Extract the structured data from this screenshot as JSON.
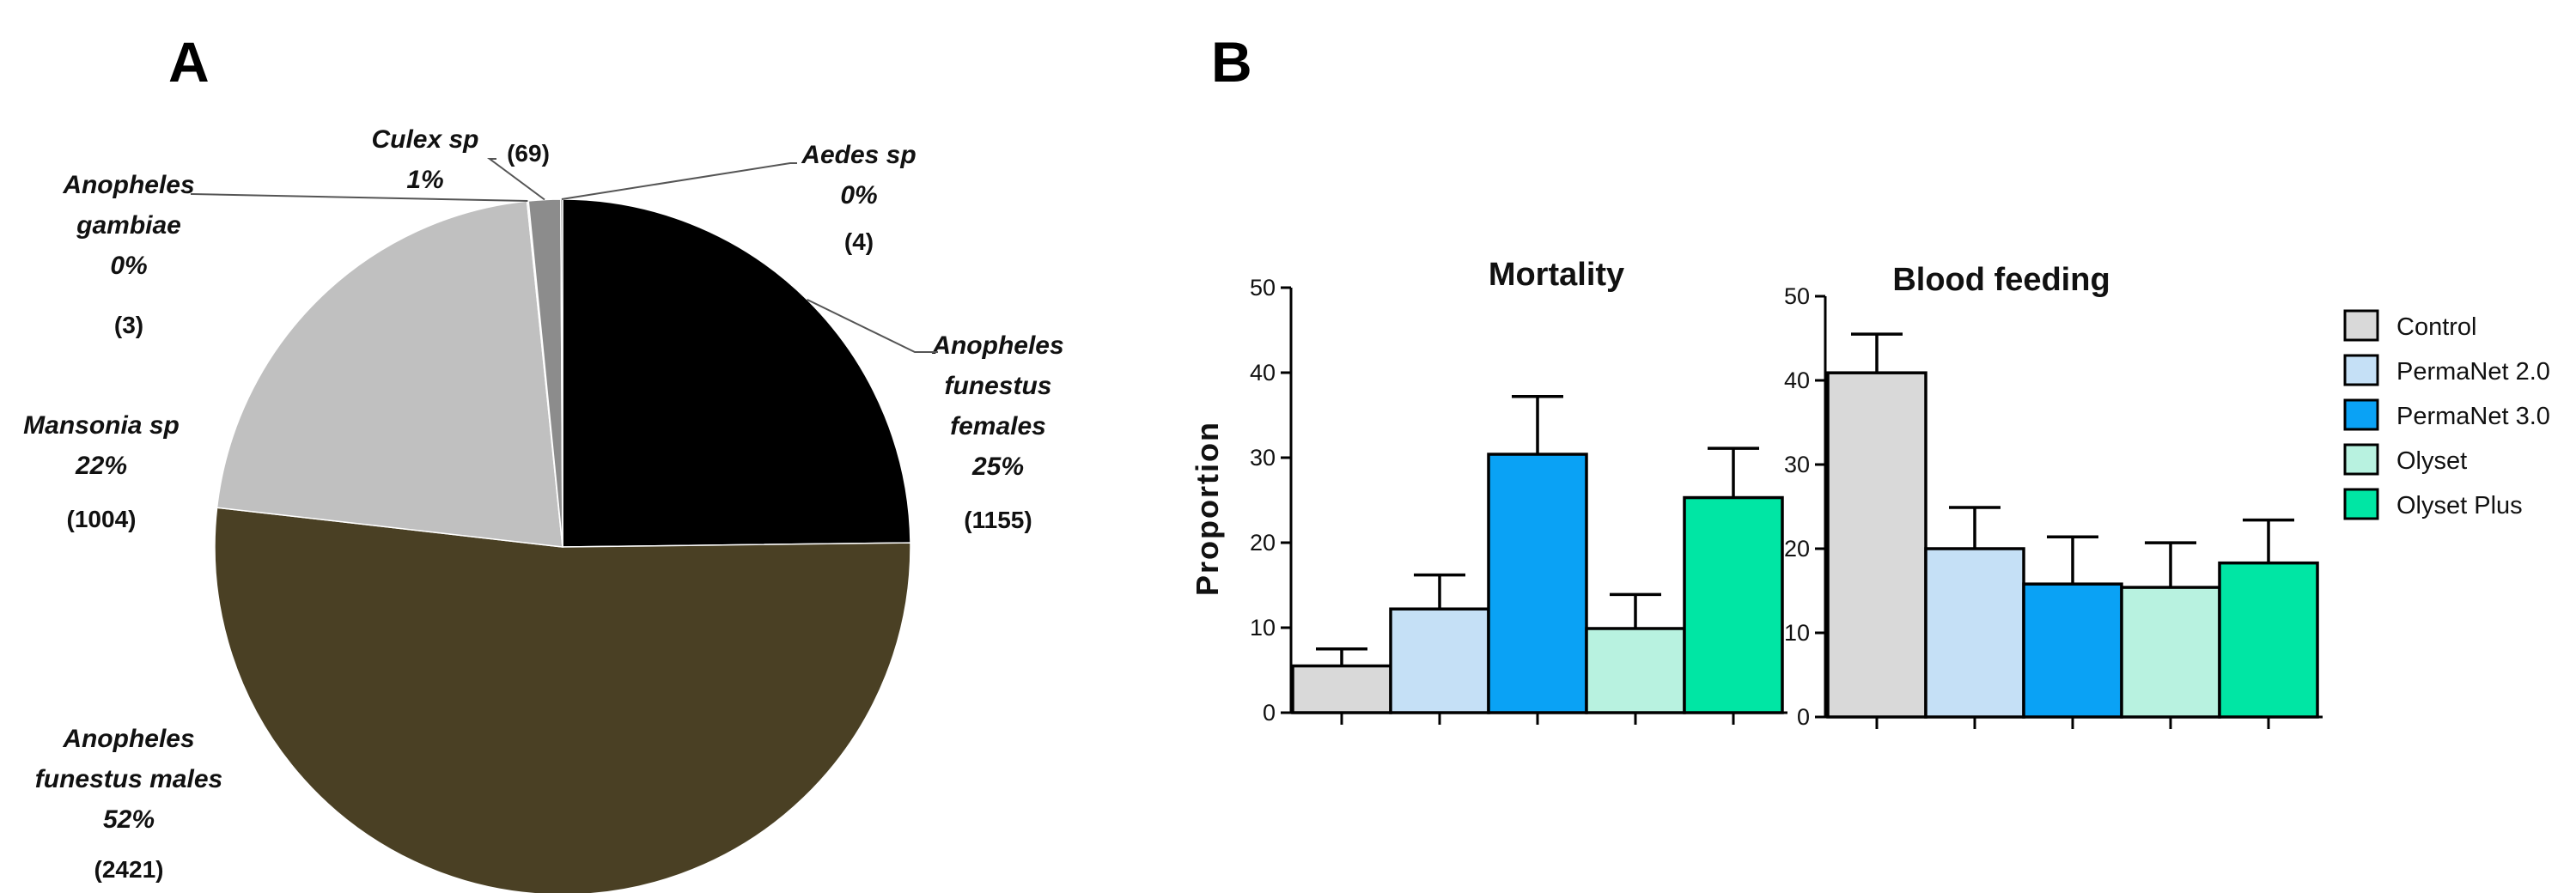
{
  "panels": {
    "a_label": "A",
    "b_label": "B"
  },
  "chart_data": [
    {
      "type": "pie",
      "panel": "A",
      "slices": [
        {
          "name": "Anopheles funestus females",
          "label_lines": [
            "Anopheles",
            "funestus",
            "females"
          ],
          "percent_label": "25%",
          "count": 1155,
          "count_label": "(1155)",
          "color": "#000000"
        },
        {
          "name": "Anopheles funestus males",
          "label_lines": [
            "Anopheles",
            "funestus males"
          ],
          "percent_label": "52%",
          "count": 2421,
          "count_label": "(2421)",
          "color": "#4a4024"
        },
        {
          "name": "Mansonia sp",
          "label_lines": [
            "Mansonia sp"
          ],
          "percent_label": "22%",
          "count": 1004,
          "count_label": "(1004)",
          "color": "#c0c0c0"
        },
        {
          "name": "Anopheles gambiae",
          "label_lines": [
            "Anopheles",
            "gambiae"
          ],
          "percent_label": "0%",
          "count": 3,
          "count_label": "(3)",
          "color": "#b0b0b0"
        },
        {
          "name": "Culex sp",
          "label_lines": [
            "Culex sp"
          ],
          "percent_label": "1%",
          "count": 69,
          "count_label": "(69)",
          "color": "#8c8c8c"
        },
        {
          "name": "Aedes sp",
          "label_lines": [
            "Aedes sp"
          ],
          "percent_label": "0%",
          "count": 4,
          "count_label": "(4)",
          "color": "#5a5a5a"
        }
      ]
    },
    {
      "type": "bar",
      "panel": "B",
      "title": "Mortality",
      "ylabel": "Proportion",
      "ylim": [
        0,
        50
      ],
      "yticks": [
        0,
        10,
        20,
        30,
        40,
        50
      ],
      "categories": [
        "Control",
        "PermaNet 2.0",
        "PermaNet 3.0",
        "Olyset",
        "Olyset Plus"
      ],
      "values": [
        5.5,
        12.2,
        30.4,
        9.9,
        25.3
      ],
      "errors": [
        2.0,
        4.0,
        6.8,
        4.0,
        5.8
      ],
      "colors": [
        "#d9d9d9",
        "#c5e0f6",
        "#0aa2f5",
        "#b8f2e0",
        "#00e6a4"
      ]
    },
    {
      "type": "bar",
      "panel": "B",
      "title": "Blood feeding",
      "ylabel": "",
      "ylim": [
        0,
        50
      ],
      "yticks": [
        0,
        10,
        20,
        30,
        40,
        50
      ],
      "categories": [
        "Control",
        "PermaNet 2.0",
        "PermaNet 3.0",
        "Olyset",
        "Olyset Plus"
      ],
      "values": [
        40.9,
        20.0,
        15.8,
        15.4,
        18.3
      ],
      "errors": [
        4.6,
        4.9,
        5.6,
        5.3,
        5.1
      ],
      "colors": [
        "#d9d9d9",
        "#c5e0f6",
        "#0aa2f5",
        "#b8f2e0",
        "#00e6a4"
      ]
    }
  ],
  "legend": {
    "items": [
      {
        "label": "Control",
        "color": "#d9d9d9"
      },
      {
        "label": "PermaNet 2.0",
        "color": "#c5e0f6"
      },
      {
        "label": "PermaNet 3.0",
        "color": "#0aa2f5"
      },
      {
        "label": "Olyset",
        "color": "#b8f2e0"
      },
      {
        "label": "Olyset Plus",
        "color": "#00e6a4"
      }
    ]
  }
}
